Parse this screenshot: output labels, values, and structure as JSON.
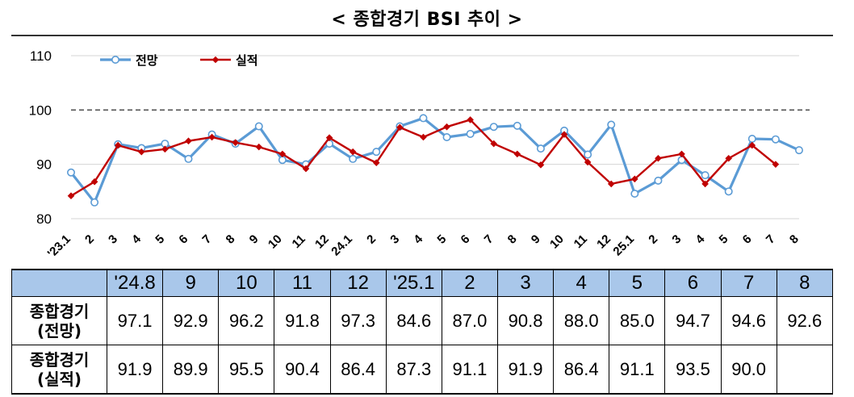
{
  "title": "< 종합경기 BSI 추이 >",
  "chart_data": {
    "type": "line",
    "categories": [
      "'23.1",
      "2",
      "3",
      "4",
      "5",
      "6",
      "7",
      "8",
      "9",
      "10",
      "11",
      "12",
      "24.1",
      "2",
      "3",
      "4",
      "5",
      "6",
      "7",
      "8",
      "9",
      "10",
      "11",
      "12",
      "25.1",
      "2",
      "3",
      "4",
      "5",
      "6",
      "7",
      "8"
    ],
    "series": [
      {
        "name": "전망",
        "color": "#5b9bd5",
        "values": [
          88.5,
          83.0,
          93.7,
          93.0,
          93.8,
          91.0,
          95.5,
          93.8,
          97.0,
          90.8,
          90.0,
          93.8,
          91.0,
          92.3,
          97.0,
          98.5,
          95.0,
          95.6,
          96.9,
          97.1,
          92.9,
          96.2,
          91.8,
          97.3,
          84.6,
          87.0,
          90.8,
          88.0,
          85.0,
          94.7,
          94.6,
          92.6
        ]
      },
      {
        "name": "실적",
        "color": "#c00000",
        "values": [
          84.2,
          86.8,
          93.5,
          92.3,
          92.8,
          94.3,
          95.0,
          94.0,
          93.2,
          91.9,
          89.2,
          94.9,
          92.3,
          90.3,
          96.8,
          95.0,
          96.9,
          98.2,
          93.8,
          91.9,
          89.9,
          95.5,
          90.4,
          86.4,
          87.3,
          91.1,
          91.9,
          86.4,
          91.1,
          93.5,
          90.0,
          null
        ]
      }
    ],
    "yticks": [
      80,
      90,
      100,
      110
    ],
    "ylim": [
      80,
      110
    ],
    "reference_line": 100,
    "legend_position": "top-left",
    "grid": true
  },
  "table": {
    "corner": "",
    "headers": [
      "'24.8",
      "9",
      "10",
      "11",
      "12",
      "'25.1",
      "2",
      "3",
      "4",
      "5",
      "6",
      "7",
      "8"
    ],
    "rows": [
      {
        "label_line1": "종합경기",
        "label_line2": "(전망)",
        "values": [
          "97.1",
          "92.9",
          "96.2",
          "91.8",
          "97.3",
          "84.6",
          "87.0",
          "90.8",
          "88.0",
          "85.0",
          "94.7",
          "94.6",
          "92.6"
        ]
      },
      {
        "label_line1": "종합경기",
        "label_line2": "(실적)",
        "values": [
          "91.9",
          "89.9",
          "95.5",
          "90.4",
          "86.4",
          "87.3",
          "91.1",
          "91.9",
          "86.4",
          "91.1",
          "93.5",
          "90.0",
          ""
        ]
      }
    ]
  }
}
